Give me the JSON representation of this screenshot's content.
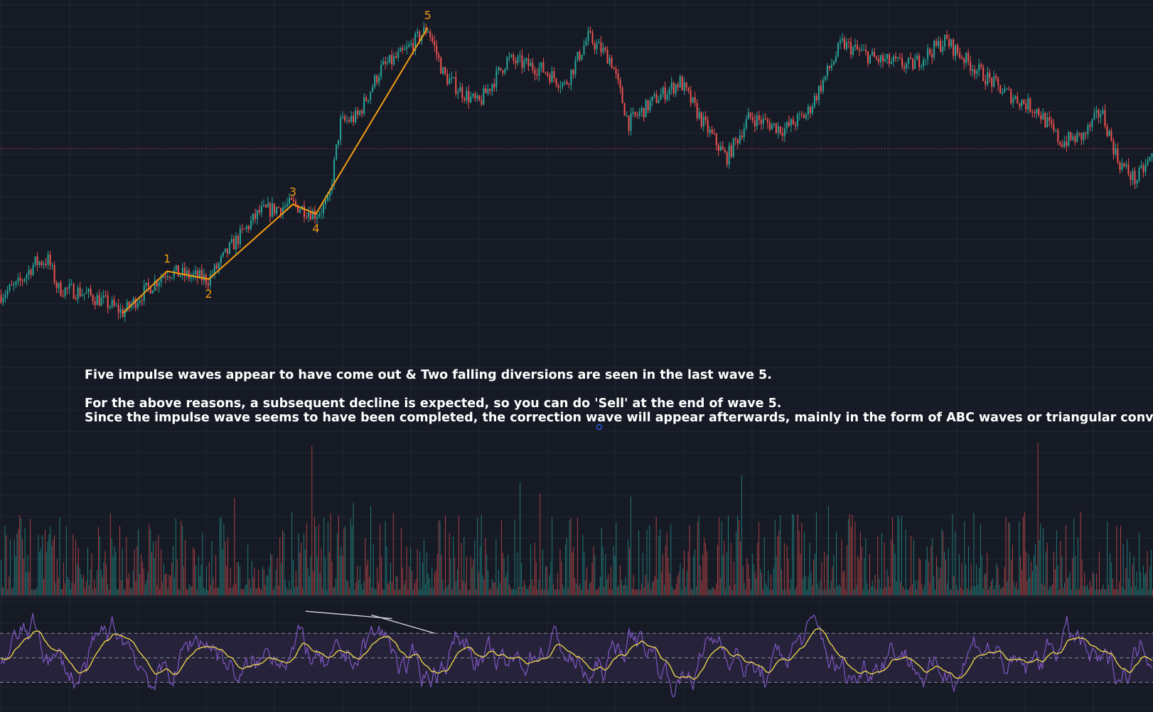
{
  "colors": {
    "background": "#161a25",
    "grid": "#222633",
    "up": "#26a69a",
    "down": "#ef5350",
    "wave": "#f39c12",
    "rsi_line": "#7e57c2",
    "rsi_ma": "#e6d14a",
    "rsi_band": "#2b2440",
    "divergence": "#d7d9de",
    "reference_line": "#ef5350",
    "annotation": "#ffffff"
  },
  "chart_data": {
    "type": "candlestick",
    "grid": true,
    "elliott_waves": [
      {
        "label": "",
        "x": 0.107,
        "y": 0.085
      },
      {
        "label": "1",
        "x": 0.145,
        "y": 0.215
      },
      {
        "label": "2",
        "x": 0.181,
        "y": 0.19
      },
      {
        "label": "3",
        "x": 0.254,
        "y": 0.425
      },
      {
        "label": "4",
        "x": 0.274,
        "y": 0.395
      },
      {
        "label": "5",
        "x": 0.371,
        "y": 0.98
      }
    ],
    "price_path": [
      [
        0.0,
        0.14
      ],
      [
        0.015,
        0.17
      ],
      [
        0.03,
        0.24
      ],
      [
        0.042,
        0.25
      ],
      [
        0.05,
        0.16
      ],
      [
        0.07,
        0.15
      ],
      [
        0.09,
        0.12
      ],
      [
        0.107,
        0.085
      ],
      [
        0.125,
        0.15
      ],
      [
        0.145,
        0.215
      ],
      [
        0.165,
        0.2
      ],
      [
        0.181,
        0.19
      ],
      [
        0.2,
        0.29
      ],
      [
        0.225,
        0.4
      ],
      [
        0.254,
        0.425
      ],
      [
        0.274,
        0.395
      ],
      [
        0.285,
        0.43
      ],
      [
        0.295,
        0.68
      ],
      [
        0.31,
        0.7
      ],
      [
        0.33,
        0.85
      ],
      [
        0.35,
        0.9
      ],
      [
        0.371,
        0.98
      ],
      [
        0.385,
        0.83
      ],
      [
        0.4,
        0.78
      ],
      [
        0.415,
        0.74
      ],
      [
        0.44,
        0.88
      ],
      [
        0.47,
        0.85
      ],
      [
        0.49,
        0.8
      ],
      [
        0.51,
        0.95
      ],
      [
        0.53,
        0.88
      ],
      [
        0.545,
        0.68
      ],
      [
        0.57,
        0.76
      ],
      [
        0.59,
        0.81
      ],
      [
        0.61,
        0.68
      ],
      [
        0.63,
        0.57
      ],
      [
        0.65,
        0.7
      ],
      [
        0.68,
        0.66
      ],
      [
        0.7,
        0.71
      ],
      [
        0.73,
        0.93
      ],
      [
        0.76,
        0.88
      ],
      [
        0.79,
        0.86
      ],
      [
        0.82,
        0.94
      ],
      [
        0.84,
        0.87
      ],
      [
        0.87,
        0.78
      ],
      [
        0.9,
        0.72
      ],
      [
        0.92,
        0.62
      ],
      [
        0.94,
        0.64
      ],
      [
        0.955,
        0.72
      ],
      [
        0.97,
        0.56
      ],
      [
        0.985,
        0.5
      ],
      [
        1.0,
        0.58
      ]
    ],
    "reference_level": 0.6,
    "rsi": {
      "upper": 70,
      "middle": 50,
      "lower": 30,
      "divergence_lines": [
        [
          [
            0.265,
            88
          ],
          [
            0.34,
            82
          ]
        ],
        [
          [
            0.322,
            85
          ],
          [
            0.377,
            70
          ]
        ]
      ]
    }
  },
  "annotation": {
    "line1": "Five impulse waves appear to have come out & Two falling diversions are seen in the last wave 5.",
    "line2": "For the above reasons, a subsequent decline is expected, so you can do 'Sell' at the end of wave 5.",
    "line3": "Since the impulse wave seems to have been completed, the correction wave will appear afterwards, mainly in the form of ABC waves or triangular convergence."
  }
}
